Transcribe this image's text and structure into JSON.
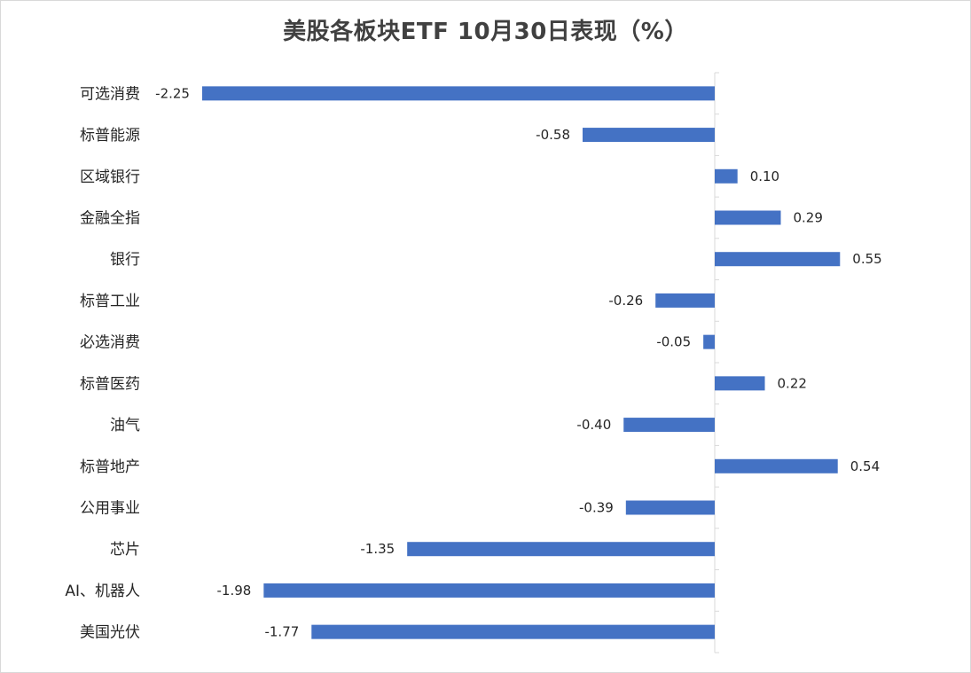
{
  "chart_data": {
    "type": "bar",
    "orientation": "horizontal",
    "title": "美股各板块ETF  10月30日表现（%）",
    "categories": [
      "可选消费",
      "标普能源",
      "区域银行",
      "金融全指",
      "银行",
      "标普工业",
      "必选消费",
      "标普医药",
      "油气",
      "标普地产",
      "公用事业",
      "芯片",
      "AI、机器人",
      "美国光伏"
    ],
    "values": [
      -2.25,
      -0.58,
      0.1,
      0.29,
      0.55,
      -0.26,
      -0.05,
      0.22,
      -0.4,
      0.54,
      -0.39,
      -1.35,
      -1.98,
      -1.77
    ],
    "value_labels": [
      "-2.25",
      "-0.58",
      "0.10",
      "0.29",
      "0.55",
      "-0.26",
      "-0.05",
      "0.22",
      "-0.40",
      "0.54",
      "-0.39",
      "-1.35",
      "-1.98",
      "-1.77"
    ],
    "xlim": [
      -2.5,
      0.5
    ],
    "bar_color": "#4472c4",
    "axis_color": "#d9d9d9",
    "grid": false,
    "legend": "none",
    "data_labels": "outside-end"
  }
}
